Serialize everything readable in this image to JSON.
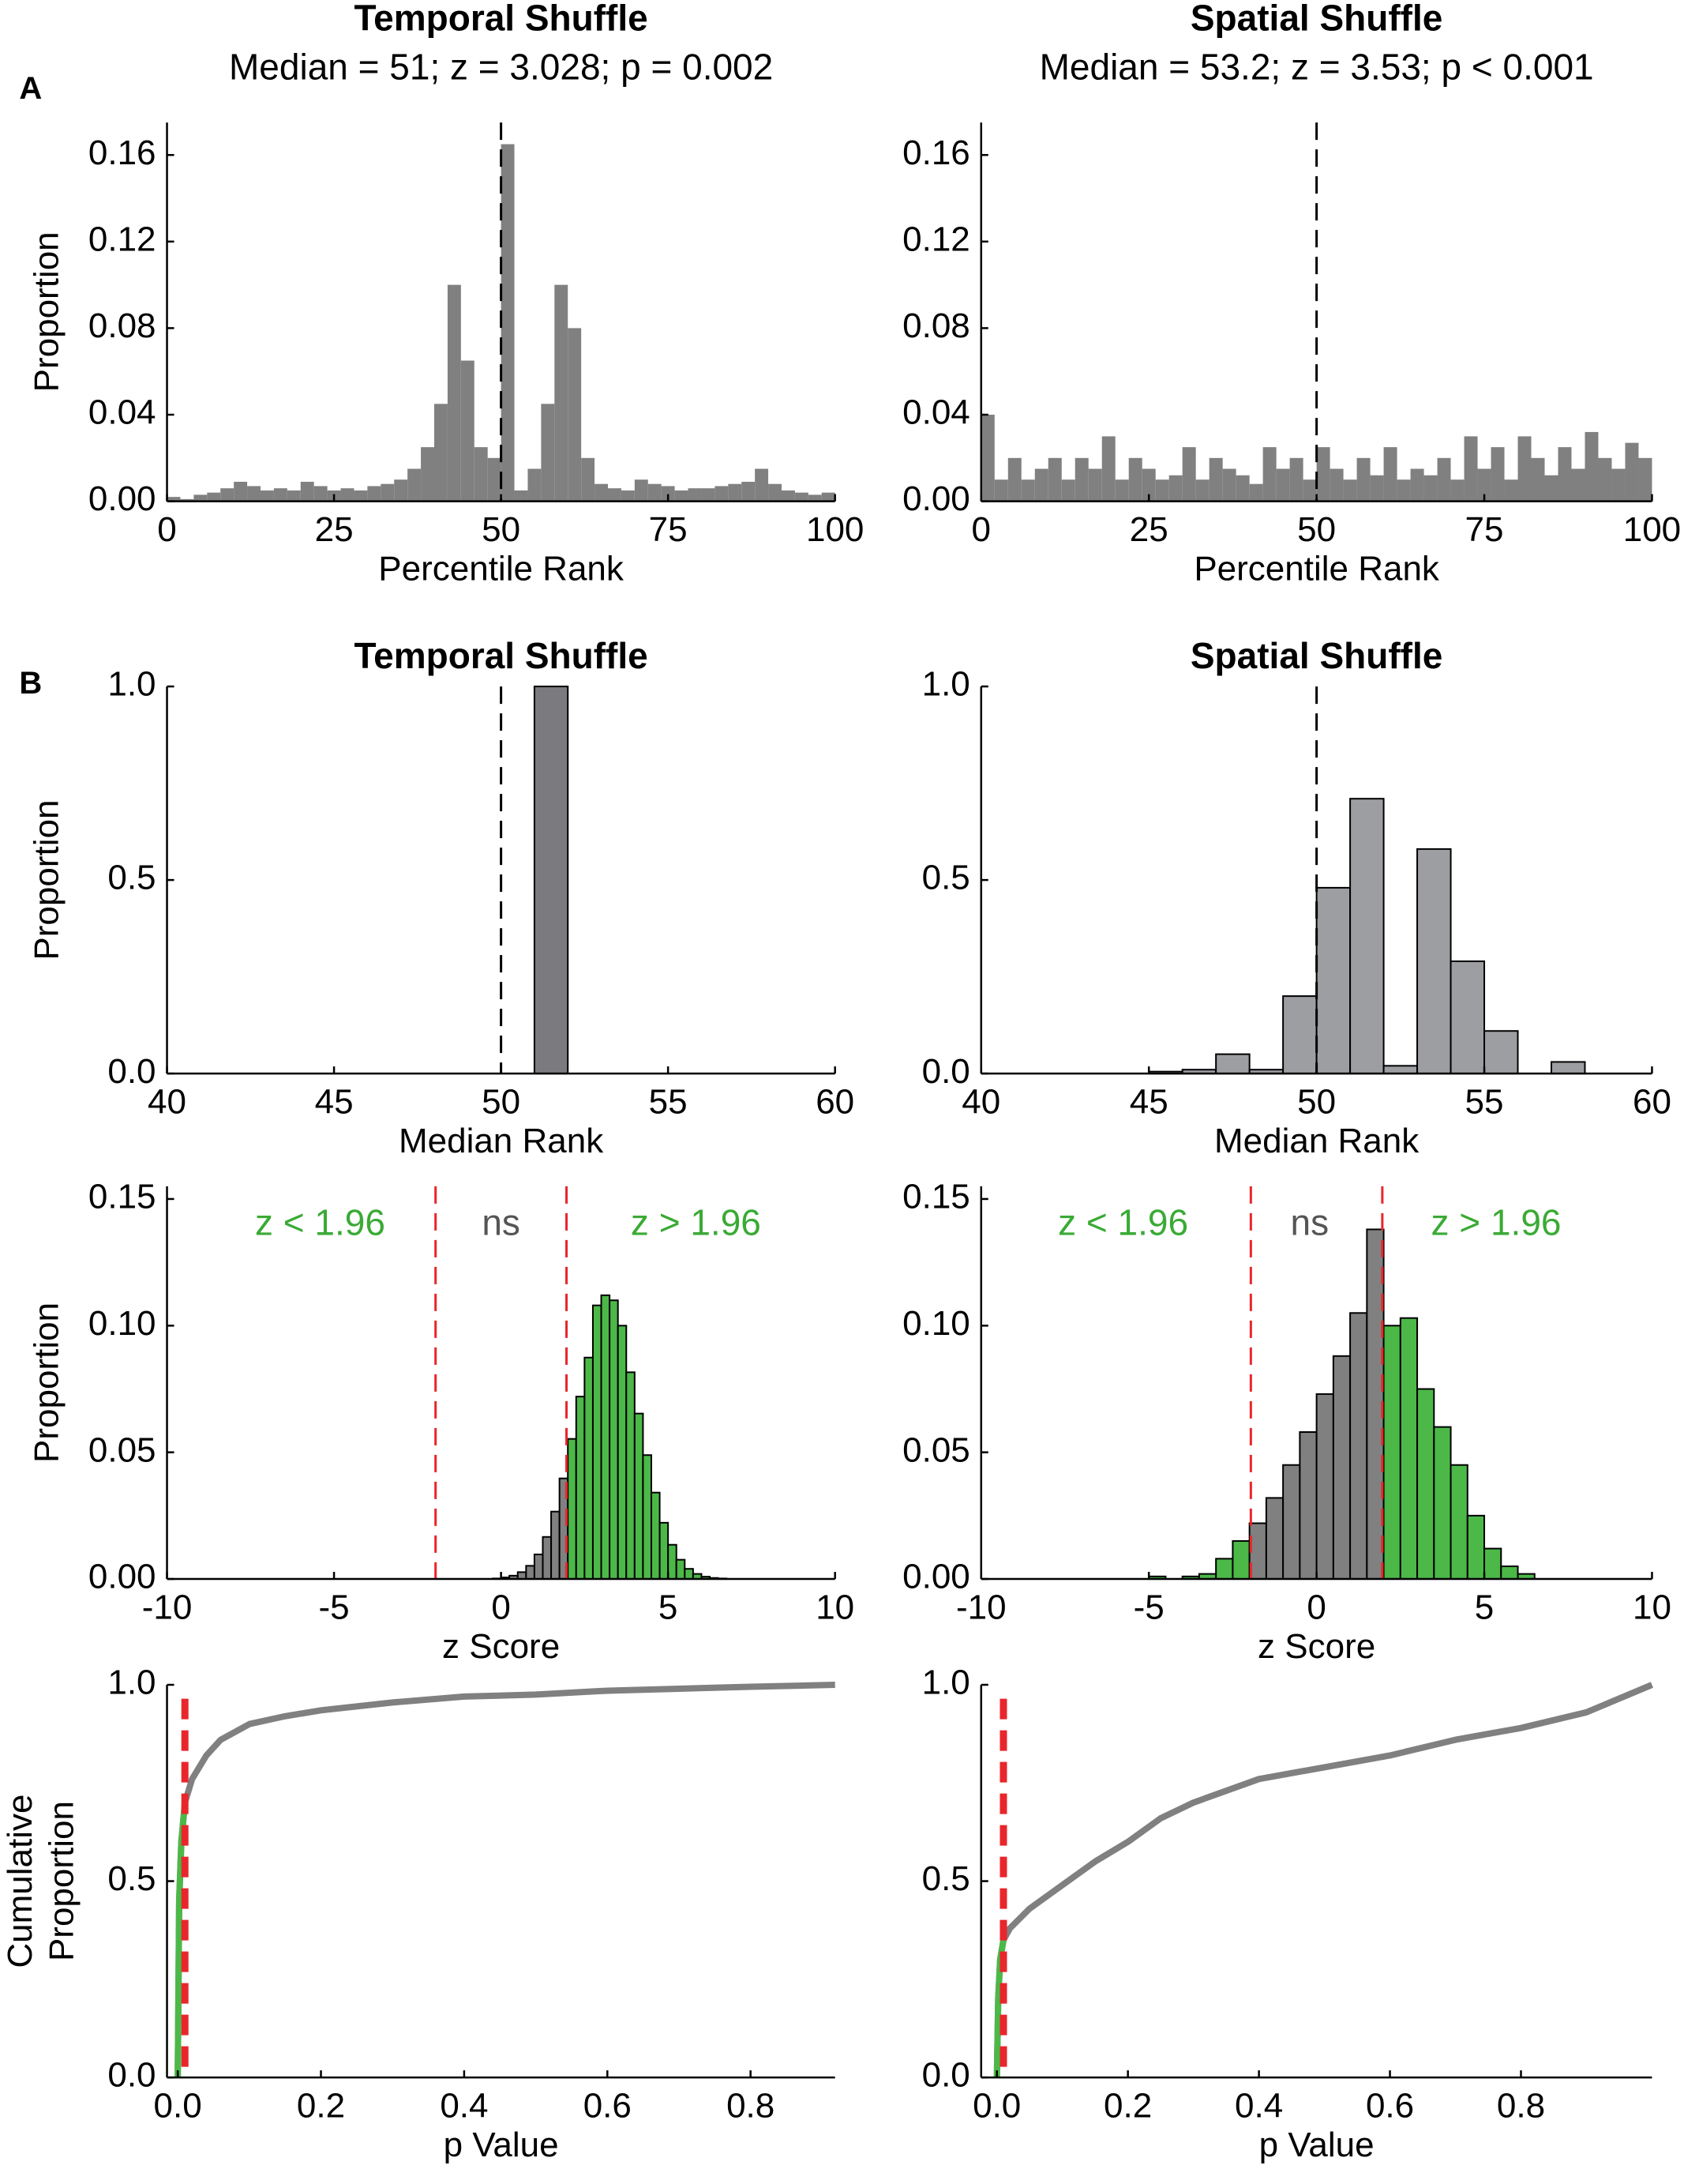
{
  "chart_data": [
    {
      "type": "histogram",
      "panel_label": "A",
      "title": "Temporal Shuffle",
      "subtitle": "Median = 51; z = 3.028; p = 0.002",
      "bins": [
        0,
        2,
        4,
        6,
        8,
        10,
        12,
        14,
        16,
        18,
        20,
        22,
        24,
        26,
        28,
        30,
        32,
        34,
        36,
        38,
        40,
        42,
        44,
        46,
        48,
        50,
        52,
        54,
        56,
        58,
        60,
        62,
        64,
        66,
        68,
        70,
        72,
        74,
        76,
        78,
        80,
        82,
        84,
        86,
        88,
        90,
        92,
        94,
        96,
        98,
        100
      ],
      "values": [
        0.002,
        0.001,
        0.003,
        0.004,
        0.006,
        0.009,
        0.007,
        0.005,
        0.006,
        0.005,
        0.009,
        0.007,
        0.005,
        0.006,
        0.005,
        0.007,
        0.008,
        0.01,
        0.015,
        0.025,
        0.045,
        0.1,
        0.065,
        0.025,
        0.02,
        0.165,
        0.005,
        0.015,
        0.045,
        0.1,
        0.08,
        0.02,
        0.008,
        0.006,
        0.005,
        0.01,
        0.008,
        0.007,
        0.005,
        0.006,
        0.006,
        0.007,
        0.008,
        0.009,
        0.015,
        0.008,
        0.005,
        0.004,
        0.003,
        0.004
      ],
      "color": "#808080",
      "xlim": [
        0,
        100
      ],
      "ylim": [
        0,
        0.175
      ],
      "xticks": [
        0,
        25,
        50,
        75,
        100
      ],
      "yticks": [
        {
          "value": 0,
          "label": "0.00"
        },
        {
          "value": 0.04,
          "label": "0.04"
        },
        {
          "value": 0.08,
          "label": "0.08"
        },
        {
          "value": 0.12,
          "label": "0.12"
        },
        {
          "value": 0.16,
          "label": "0.16"
        }
      ],
      "xlabel": "Percentile Rank",
      "ylabel": "Proportion",
      "vlines": [
        50
      ],
      "vline_color": "#000000"
    },
    {
      "type": "histogram",
      "title": "Spatial Shuffle",
      "subtitle": "Median = 53.2;  z = 3.53; p  < 0.001",
      "bins": [
        0,
        2,
        4,
        6,
        8,
        10,
        12,
        14,
        16,
        18,
        20,
        22,
        24,
        26,
        28,
        30,
        32,
        34,
        36,
        38,
        40,
        42,
        44,
        46,
        48,
        50,
        52,
        54,
        56,
        58,
        60,
        62,
        64,
        66,
        68,
        70,
        72,
        74,
        76,
        78,
        80,
        82,
        84,
        86,
        88,
        90,
        92,
        94,
        96,
        98,
        100
      ],
      "values": [
        0.04,
        0.01,
        0.02,
        0.01,
        0.015,
        0.02,
        0.01,
        0.02,
        0.015,
        0.03,
        0.01,
        0.02,
        0.015,
        0.01,
        0.012,
        0.025,
        0.01,
        0.02,
        0.015,
        0.012,
        0.008,
        0.025,
        0.015,
        0.02,
        0.01,
        0.025,
        0.015,
        0.01,
        0.02,
        0.012,
        0.025,
        0.01,
        0.015,
        0.012,
        0.02,
        0.01,
        0.03,
        0.015,
        0.025,
        0.01,
        0.03,
        0.02,
        0.012,
        0.025,
        0.015,
        0.032,
        0.02,
        0.015,
        0.027,
        0.02
      ],
      "color": "#808080",
      "xlim": [
        0,
        100
      ],
      "ylim": [
        0,
        0.175
      ],
      "xticks": [
        0,
        25,
        50,
        75,
        100
      ],
      "yticks": [
        {
          "value": 0,
          "label": "0.00"
        },
        {
          "value": 0.04,
          "label": "0.04"
        },
        {
          "value": 0.08,
          "label": "0.08"
        },
        {
          "value": 0.12,
          "label": "0.12"
        },
        {
          "value": 0.16,
          "label": "0.16"
        }
      ],
      "xlabel": "Percentile Rank",
      "vlines": [
        50
      ],
      "vline_color": "#000000"
    },
    {
      "type": "histogram",
      "panel_label": "B",
      "title": "Temporal Shuffle",
      "bins": [
        51,
        52
      ],
      "values": [
        1.0
      ],
      "color": "#7b7b7f",
      "outline": "#000000",
      "xlim": [
        40,
        60
      ],
      "ylim": [
        0,
        1
      ],
      "xticks": [
        40,
        45,
        50,
        55,
        60
      ],
      "yticks": [
        {
          "value": 0,
          "label": "0.0"
        },
        {
          "value": 0.5,
          "label": "0.5"
        },
        {
          "value": 1,
          "label": "1.0"
        }
      ],
      "xlabel": "Median Rank",
      "ylabel": "Proportion",
      "vlines": [
        50
      ],
      "vline_color": "#000000"
    },
    {
      "type": "histogram",
      "title": "Spatial Shuffle",
      "bins": [
        45,
        46,
        47,
        48,
        49,
        50,
        51,
        52,
        53,
        54,
        55,
        56,
        57,
        58
      ],
      "values": [
        0.005,
        0.01,
        0.05,
        0.01,
        0.2,
        0.48,
        0.71,
        0.02,
        0.58,
        0.29,
        0.11,
        0,
        0.03
      ],
      "color": "#9d9ea2",
      "outline": "#000000",
      "xlim": [
        40,
        60
      ],
      "ylim": [
        0,
        1
      ],
      "xticks": [
        40,
        45,
        50,
        55,
        60
      ],
      "yticks": [
        {
          "value": 0,
          "label": "0.0"
        },
        {
          "value": 0.5,
          "label": "0.5"
        },
        {
          "value": 1,
          "label": "1.0"
        }
      ],
      "xlabel": "Median Rank",
      "vlines": [
        50
      ],
      "vline_color": "#000000"
    },
    {
      "type": "histogram",
      "bins": [
        -0.25,
        0,
        0.25,
        0.5,
        0.75,
        1,
        1.25,
        1.5,
        1.75,
        2,
        2.25,
        2.5,
        2.75,
        3,
        3.25,
        3.5,
        3.75,
        4,
        4.25,
        4.5,
        4.75,
        5,
        5.25,
        5.5,
        5.75,
        6,
        6.25,
        6.5,
        6.75
      ],
      "values": [
        0.0002,
        0.0006,
        0.0013,
        0.0027,
        0.0052,
        0.0097,
        0.0166,
        0.0266,
        0.0397,
        0.0553,
        0.072,
        0.0874,
        0.108,
        0.112,
        0.11,
        0.1,
        0.0816,
        0.0653,
        0.0489,
        0.0341,
        0.0222,
        0.0135,
        0.0076,
        0.004,
        0.002,
        0.0009,
        0.0004,
        0.0002
      ],
      "color": "#808080",
      "highlight_color": "#4cb848",
      "outline": "#000000",
      "xlim": [
        -10,
        10
      ],
      "ylim": [
        0,
        0.155
      ],
      "xticks": [
        -10,
        -5,
        0,
        5,
        10
      ],
      "yticks": [
        {
          "value": 0,
          "label": "0.00"
        },
        {
          "value": 0.05,
          "label": "0.05"
        },
        {
          "value": 0.1,
          "label": "0.10"
        },
        {
          "value": 0.15,
          "label": "0.15"
        }
      ],
      "xlabel": "z Score",
      "ylabel": "Proportion",
      "vlines": [
        -1.96,
        1.96
      ],
      "vline_color": "#e8262b",
      "annotations": [
        {
          "text": "z < 1.96",
          "color": "#3aaa35"
        },
        {
          "text": "ns",
          "color": "#555555"
        },
        {
          "text": "z > 1.96",
          "color": "#3aaa35"
        }
      ]
    },
    {
      "type": "histogram",
      "bins": [
        -5,
        -4.5,
        -4,
        -3.5,
        -3,
        -2.5,
        -2,
        -1.5,
        -1,
        -0.5,
        0,
        0.5,
        1,
        1.5,
        2,
        2.5,
        3,
        3.5,
        4,
        4.5,
        5,
        5.5,
        6,
        6.5
      ],
      "values": [
        0.001,
        0,
        0.001,
        0.002,
        0.008,
        0.015,
        0.022,
        0.032,
        0.045,
        0.058,
        0.073,
        0.088,
        0.105,
        0.138,
        0.1,
        0.103,
        0.075,
        0.06,
        0.045,
        0.025,
        0.012,
        0.005,
        0.002
      ],
      "color": "#808080",
      "highlight_color": "#4cb848",
      "outline": "#000000",
      "xlim": [
        -10,
        10
      ],
      "ylim": [
        0,
        0.155
      ],
      "xticks": [
        -10,
        -5,
        0,
        5,
        10
      ],
      "yticks": [
        {
          "value": 0,
          "label": "0.00"
        },
        {
          "value": 0.05,
          "label": "0.05"
        },
        {
          "value": 0.1,
          "label": "0.10"
        },
        {
          "value": 0.15,
          "label": "0.15"
        }
      ],
      "xlabel": "z Score",
      "vlines": [
        -1.96,
        1.96
      ],
      "vline_color": "#e8262b",
      "annotations": [
        {
          "text": "z < 1.96",
          "color": "#3aaa35"
        },
        {
          "text": "ns",
          "color": "#555555"
        },
        {
          "text": "z > 1.96",
          "color": "#3aaa35"
        }
      ]
    },
    {
      "type": "line",
      "x": [
        0,
        0.002,
        0.005,
        0.01,
        0.02,
        0.04,
        0.06,
        0.1,
        0.15,
        0.2,
        0.3,
        0.4,
        0.5,
        0.6,
        0.7,
        0.8,
        0.918
      ],
      "values": [
        0,
        0.45,
        0.6,
        0.7,
        0.76,
        0.82,
        0.86,
        0.9,
        0.92,
        0.935,
        0.955,
        0.97,
        0.975,
        0.985,
        0.99,
        0.995,
        1.0
      ],
      "color": "#808080",
      "highlight_color": "#4cb848",
      "xlim": [
        -0.015,
        0.918
      ],
      "ylim": [
        0,
        1
      ],
      "xticks": [
        {
          "value": 0,
          "label": "0.0"
        },
        0.2,
        0.4,
        0.6,
        0.8
      ],
      "yticks": [
        {
          "value": 0,
          "label": "0.0"
        },
        {
          "value": 0.5,
          "label": "0.5"
        },
        {
          "value": 1,
          "label": "1.0"
        }
      ],
      "xlabel": "p Value",
      "ylabel": [
        "Cumulative",
        "Proportion"
      ],
      "vlines": [
        0.01
      ],
      "vline_color": "#e8262b"
    },
    {
      "type": "line",
      "x": [
        0,
        0.002,
        0.005,
        0.01,
        0.02,
        0.05,
        0.1,
        0.15,
        0.2,
        0.25,
        0.3,
        0.4,
        0.5,
        0.6,
        0.7,
        0.8,
        0.9,
        1.0
      ],
      "values": [
        0,
        0.2,
        0.3,
        0.35,
        0.38,
        0.43,
        0.49,
        0.55,
        0.6,
        0.66,
        0.7,
        0.76,
        0.79,
        0.82,
        0.86,
        0.89,
        0.93,
        1.0
      ],
      "color": "#808080",
      "highlight_color": "#4cb848",
      "xlim": [
        -0.024,
        1.0
      ],
      "ylim": [
        0,
        1
      ],
      "xticks": [
        {
          "value": 0,
          "label": "0.0"
        },
        0.2,
        0.4,
        0.6,
        0.8
      ],
      "yticks": [
        {
          "value": 0,
          "label": "0.0"
        },
        {
          "value": 0.5,
          "label": "0.5"
        },
        {
          "value": 1,
          "label": "1.0"
        }
      ],
      "xlabel": "p Value",
      "vlines": [
        0.01
      ],
      "vline_color": "#e8262b"
    }
  ]
}
